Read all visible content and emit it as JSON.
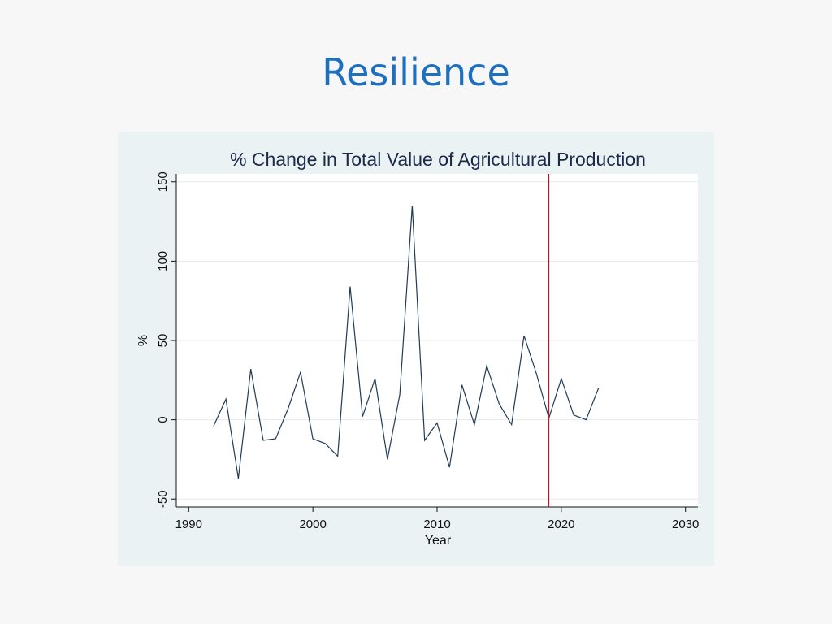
{
  "slide": {
    "title": "Resilience"
  },
  "chart_data": {
    "type": "line",
    "title": "% Change in Total Value of Agricultural Production",
    "xlabel": "Year",
    "ylabel": "%",
    "xlim": [
      1989,
      2031
    ],
    "ylim": [
      -55,
      155
    ],
    "x_ticks": [
      1990,
      2000,
      2010,
      2020,
      2030
    ],
    "y_ticks": [
      -50,
      0,
      50,
      100,
      150
    ],
    "grid": true,
    "reference_line": {
      "x": 2019,
      "color": "#c8102e"
    },
    "series": [
      {
        "color": "#1f3b57",
        "x": [
          1992,
          1993,
          1994,
          1995,
          1996,
          1997,
          1998,
          1999,
          2000,
          2001,
          2002,
          2003,
          2004,
          2005,
          2006,
          2007,
          2008,
          2009,
          2010,
          2011,
          2012,
          2013,
          2014,
          2015,
          2016,
          2017,
          2018,
          2019,
          2020,
          2021,
          2022,
          2023
        ],
        "y": [
          -4,
          13,
          -37,
          32,
          -13,
          -12,
          7,
          30,
          -12,
          -15,
          -23,
          84,
          2,
          26,
          -25,
          16,
          135,
          -13,
          -2,
          -30,
          22,
          -3,
          34,
          10,
          -3,
          53,
          29,
          1,
          26,
          3,
          0,
          20
        ]
      }
    ]
  }
}
